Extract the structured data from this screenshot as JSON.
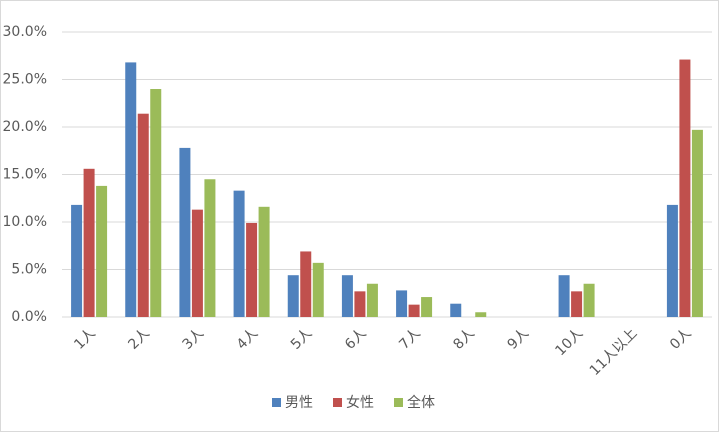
{
  "chart_data": {
    "type": "bar",
    "categories": [
      "1人",
      "2人",
      "3人",
      "4人",
      "5人",
      "6人",
      "7人",
      "8人",
      "9人",
      "10人",
      "11人以上",
      "0人"
    ],
    "series": [
      {
        "name": "男性",
        "color": "#4f81bd",
        "values": [
          11.8,
          26.8,
          17.8,
          13.3,
          4.4,
          4.4,
          2.8,
          1.4,
          0,
          4.4,
          0,
          11.8
        ]
      },
      {
        "name": "女性",
        "color": "#c0504d",
        "values": [
          15.6,
          21.4,
          11.3,
          9.9,
          6.9,
          2.7,
          1.3,
          0,
          0,
          2.7,
          0,
          27.1
        ]
      },
      {
        "name": "全体",
        "color": "#9bbb59",
        "values": [
          13.8,
          24.0,
          14.5,
          11.6,
          5.7,
          3.5,
          2.1,
          0.5,
          0,
          3.5,
          0,
          19.7
        ]
      }
    ],
    "ylim": [
      0,
      30
    ],
    "yticks": [
      {
        "value": 0,
        "label": "0.0%"
      },
      {
        "value": 5,
        "label": "5.0%"
      },
      {
        "value": 10,
        "label": "10.0%"
      },
      {
        "value": 15,
        "label": "15.0%"
      },
      {
        "value": 20,
        "label": "20.0%"
      },
      {
        "value": 25,
        "label": "25.0%"
      },
      {
        "value": 30,
        "label": "30.0%"
      }
    ],
    "grid": true,
    "legend": "bottom"
  }
}
